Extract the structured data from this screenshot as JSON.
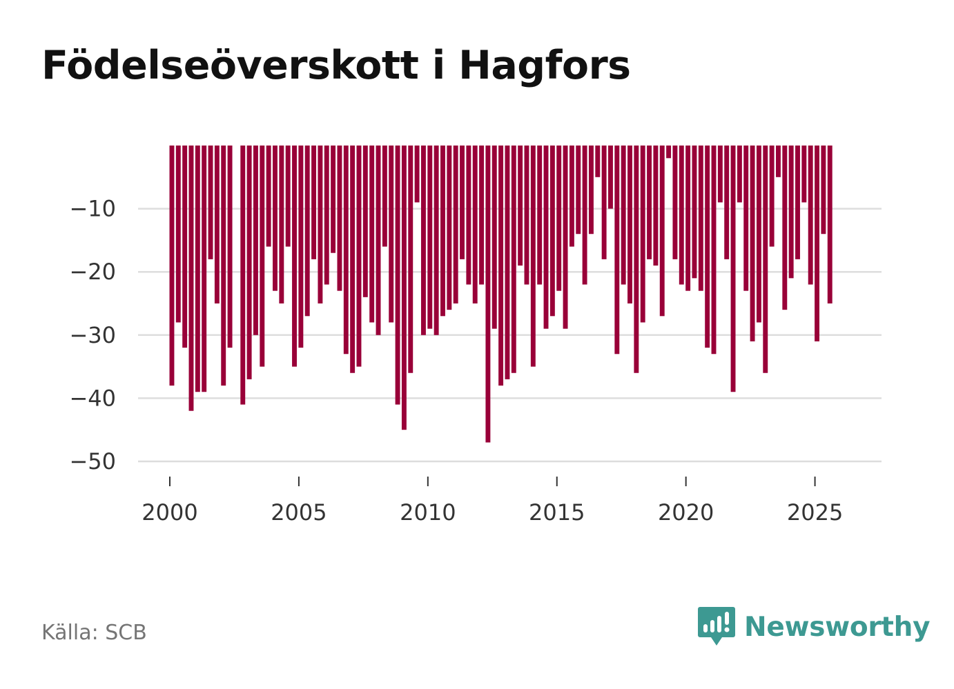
{
  "brand": {
    "name": "Newsworthy",
    "color": "#3d9992",
    "icon": "bar-chart-bubble-icon"
  },
  "source": "Källa: SCB",
  "chart_data": {
    "type": "bar",
    "title": "Födelseöverskott i Hagfors",
    "xlabel": "",
    "ylabel": "",
    "bar_color": "#990038",
    "grid_color": "#dddddd",
    "ylim": [
      -54,
      0
    ],
    "xlim": [
      2000,
      2026.75
    ],
    "yticks": [
      -10,
      -20,
      -30,
      -40,
      -50
    ],
    "ytick_labels": [
      "−10",
      "−20",
      "−30",
      "−40",
      "−50"
    ],
    "xticks": [
      2000,
      2005,
      2010,
      2015,
      2020,
      2025
    ],
    "xtick_labels": [
      "2000",
      "2005",
      "2010",
      "2015",
      "2020",
      "2025"
    ],
    "start": 2000,
    "step": 0.25,
    "values": [
      -38,
      -28,
      -32,
      -42,
      -39,
      -39,
      -18,
      -25,
      -38,
      -32,
      0,
      -41,
      -37,
      -30,
      -35,
      -16,
      -23,
      -25,
      -16,
      -35,
      -32,
      -27,
      -18,
      -25,
      -22,
      -17,
      -23,
      -33,
      -36,
      -35,
      -24,
      -28,
      -30,
      -16,
      -28,
      -41,
      -45,
      -36,
      -9,
      -30,
      -29,
      -30,
      -27,
      -26,
      -25,
      -18,
      -22,
      -25,
      -22,
      -47,
      -29,
      -38,
      -37,
      -36,
      -19,
      -22,
      -35,
      -22,
      -29,
      -27,
      -23,
      -29,
      -16,
      -14,
      -22,
      -14,
      -5,
      -18,
      -10,
      -33,
      -22,
      -25,
      -36,
      -28,
      -18,
      -19,
      -27,
      -2,
      -18,
      -22,
      -23,
      -21,
      -23,
      -32,
      -33,
      -9,
      -18,
      -39,
      -9,
      -23,
      -31,
      -28,
      -36,
      -16,
      -5,
      -26,
      -21,
      -18,
      -9,
      -22,
      -31,
      -14,
      -25
    ]
  }
}
